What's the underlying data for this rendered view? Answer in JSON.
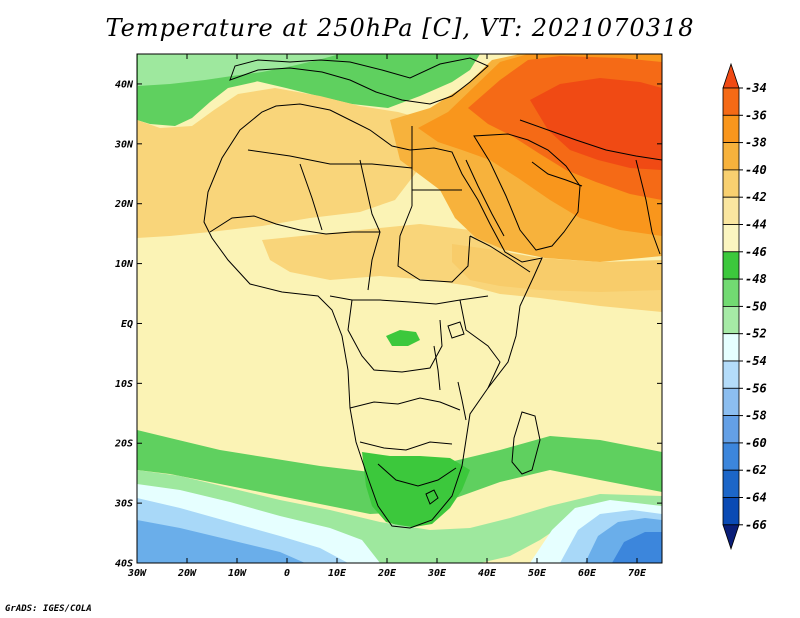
{
  "title": "Temperature at 250hPa [C], VT: 2021070318",
  "credit": "GrADS: IGES/COLA",
  "map": {
    "lon_range": [
      -30,
      75
    ],
    "lat_range": [
      -40,
      45
    ],
    "lon_ticks": [
      {
        "value": -30,
        "label": "30W"
      },
      {
        "value": -20,
        "label": "20W"
      },
      {
        "value": -10,
        "label": "10W"
      },
      {
        "value": 0,
        "label": "0"
      },
      {
        "value": 10,
        "label": "10E"
      },
      {
        "value": 20,
        "label": "20E"
      },
      {
        "value": 30,
        "label": "30E"
      },
      {
        "value": 40,
        "label": "40E"
      },
      {
        "value": 50,
        "label": "50E"
      },
      {
        "value": 60,
        "label": "60E"
      },
      {
        "value": 70,
        "label": "70E"
      }
    ],
    "lat_ticks": [
      {
        "value": 40,
        "label": "40N"
      },
      {
        "value": 30,
        "label": "30N"
      },
      {
        "value": 20,
        "label": "20N"
      },
      {
        "value": 10,
        "label": "10N"
      },
      {
        "value": 0,
        "label": "EQ"
      },
      {
        "value": -10,
        "label": "10S"
      },
      {
        "value": -20,
        "label": "20S"
      },
      {
        "value": -30,
        "label": "30S"
      },
      {
        "value": -40,
        "label": "40S"
      }
    ]
  },
  "colorbar": {
    "labels": [
      "-34",
      "-36",
      "-38",
      "-40",
      "-42",
      "-44",
      "-46",
      "-48",
      "-50",
      "-52",
      "-54",
      "-56",
      "-58",
      "-60",
      "-62",
      "-64",
      "-66"
    ],
    "colors": [
      "#f04a14",
      "#f56a16",
      "#f9961c",
      "#f7b23c",
      "#f8d070",
      "#fae6a0",
      "#fbf5c0",
      "#3cc83c",
      "#72da72",
      "#a6eaa6",
      "#e6ffff",
      "#b4dcfa",
      "#8cbef0",
      "#64a0e6",
      "#3c86dc",
      "#1c66c8",
      "#0a4ab4",
      "#0a1e78"
    ]
  },
  "regions": [
    {
      "name": "field-background",
      "color": "#fbf3b5"
    },
    {
      "name": "zone-green-north-atlantic",
      "color": "#5fd05f"
    },
    {
      "name": "zone-green-mediterranean",
      "color": "#5fd05f"
    },
    {
      "name": "zone-light-green-mediterranean",
      "color": "#9ee89e"
    },
    {
      "name": "zone-tan-northwest-africa",
      "color": "#f9d57a"
    },
    {
      "name": "zone-tan-sahara-central",
      "color": "#f9d57a"
    },
    {
      "name": "zone-tan-east-africa",
      "color": "#f8cc6a"
    },
    {
      "name": "zone-orange-middle-east-outer",
      "color": "#f7b23c"
    },
    {
      "name": "zone-orange-middle-east",
      "color": "#f9961c"
    },
    {
      "name": "zone-dark-orange-iran",
      "color": "#f56a16"
    },
    {
      "name": "zone-red-orange-afghanistan",
      "color": "#f04a14"
    },
    {
      "name": "zone-green-southern-band",
      "color": "#5fd05f"
    },
    {
      "name": "zone-green-south-africa",
      "color": "#3cc83c"
    },
    {
      "name": "zone-green-central-africa",
      "color": "#3cc83c"
    },
    {
      "name": "zone-light-green-southern",
      "color": "#9ee89e"
    },
    {
      "name": "zone-pale-cyan-southwest",
      "color": "#e6ffff"
    },
    {
      "name": "zone-light-blue-southwest",
      "color": "#a8d8f8"
    },
    {
      "name": "zone-blue-southwest",
      "color": "#6aaeea"
    },
    {
      "name": "zone-pale-cyan-southeast",
      "color": "#e6ffff"
    },
    {
      "name": "zone-light-blue-southeast",
      "color": "#a8d8f8"
    },
    {
      "name": "zone-blue-southeast",
      "color": "#6aaeea"
    },
    {
      "name": "zone-deep-blue-southeast",
      "color": "#3c86dc"
    }
  ]
}
